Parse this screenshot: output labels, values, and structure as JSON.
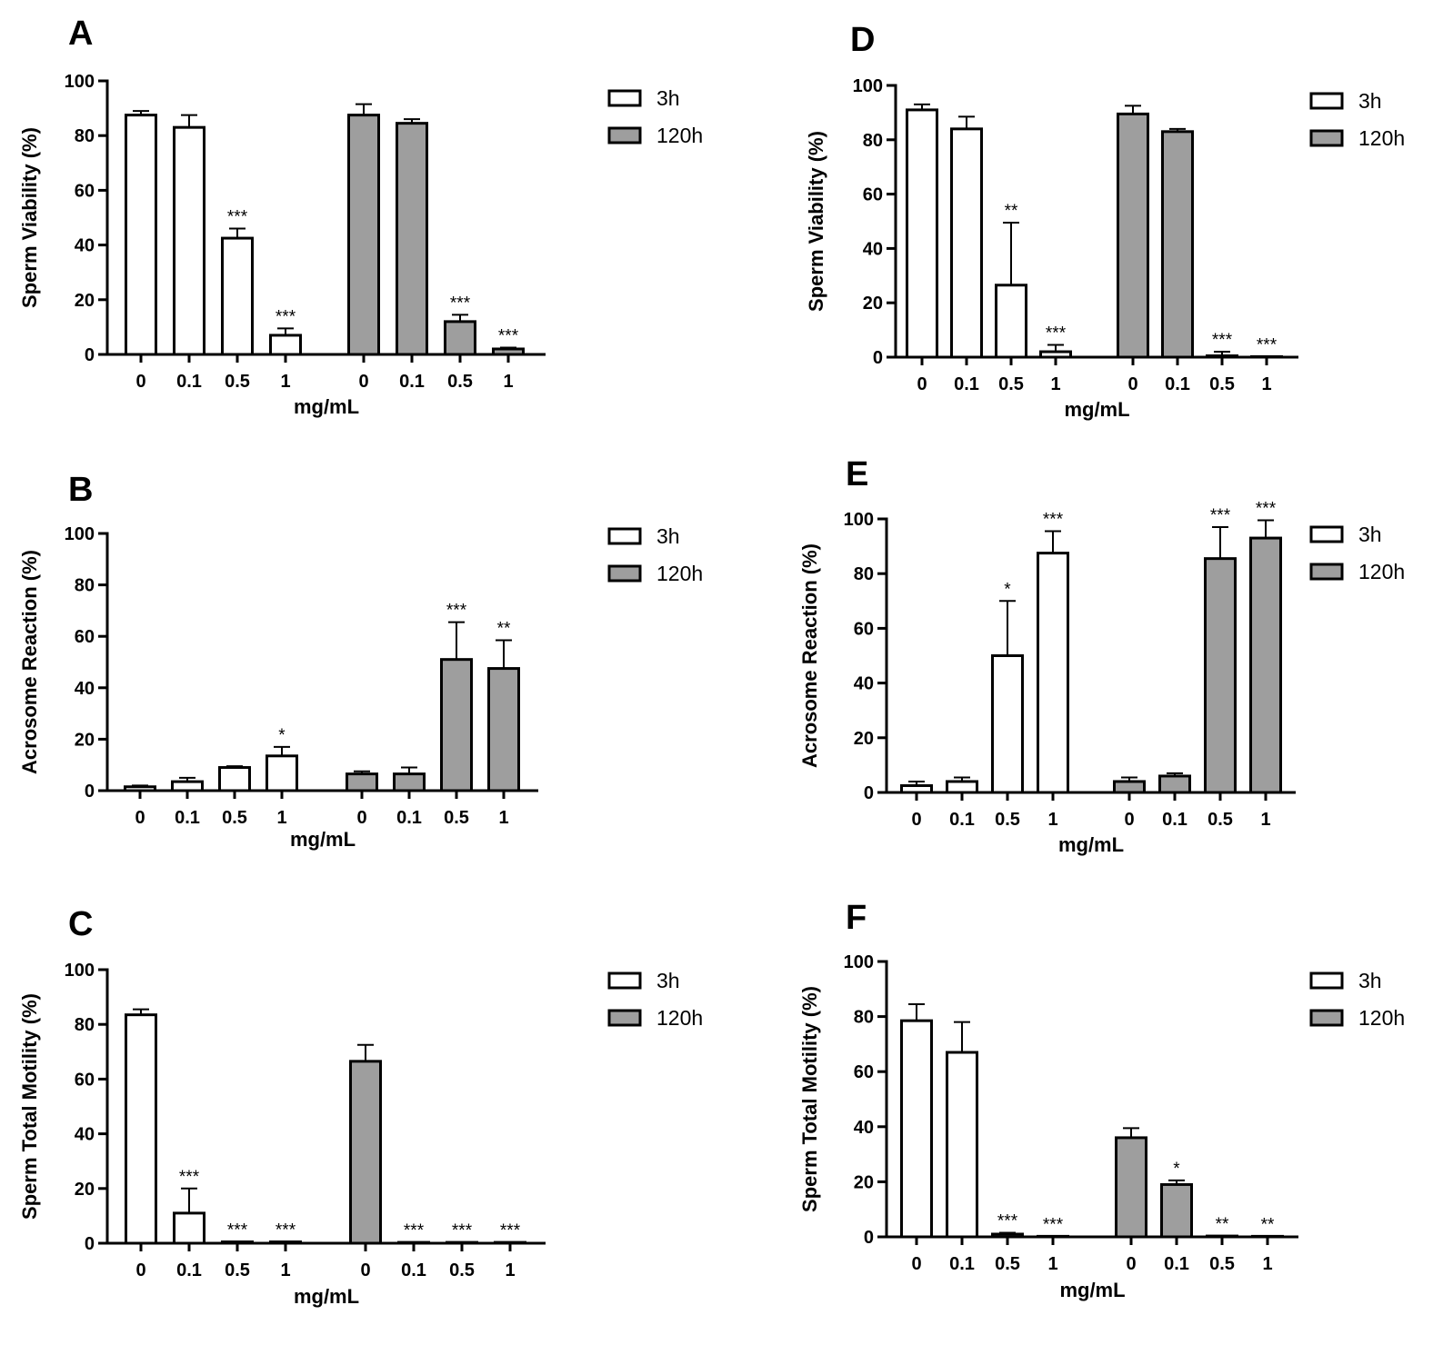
{
  "figure_colors": {
    "series_3h": "#ffffff",
    "series_120h": "#9e9e9e",
    "ink": "#000000"
  },
  "chart_data": [
    {
      "type": "bar",
      "panel": "A",
      "title": "",
      "xlabel": "mg/mL",
      "ylabel": "Sperm Viability (%)",
      "ylim": [
        0,
        100
      ],
      "yticks": [
        0,
        20,
        40,
        60,
        80,
        100
      ],
      "categories": [
        "0",
        "0.1",
        "0.5",
        "1"
      ],
      "legend": [
        "3h",
        "120h"
      ],
      "legend_position": "right",
      "series": [
        {
          "name": "3h",
          "values": [
            87.5,
            83,
            42.5,
            7
          ],
          "errors": [
            1.5,
            4.5,
            3.5,
            2.5
          ],
          "significance": [
            "",
            "",
            "***",
            "***"
          ]
        },
        {
          "name": "120h",
          "values": [
            87.5,
            84.5,
            12,
            2
          ],
          "errors": [
            4,
            1.5,
            2.5,
            0.5
          ],
          "significance": [
            "",
            "",
            "***",
            "***"
          ]
        }
      ]
    },
    {
      "type": "bar",
      "panel": "B",
      "title": "",
      "xlabel": "mg/mL",
      "ylabel": "Acrosome Reaction (%)",
      "ylim": [
        0,
        100
      ],
      "yticks": [
        0,
        20,
        40,
        60,
        80,
        100
      ],
      "categories": [
        "0",
        "0.1",
        "0.5",
        "1"
      ],
      "legend": [
        "3h",
        "120h"
      ],
      "legend_position": "right",
      "series": [
        {
          "name": "3h",
          "values": [
            1.5,
            3.5,
            9,
            13.5
          ],
          "errors": [
            0.5,
            1.5,
            0.5,
            3.5
          ],
          "significance": [
            "",
            "",
            "",
            "*"
          ]
        },
        {
          "name": "120h",
          "values": [
            6.5,
            6.5,
            51,
            47.5
          ],
          "errors": [
            1,
            2.5,
            14.5,
            11
          ],
          "significance": [
            "",
            "",
            "***",
            "**"
          ]
        }
      ]
    },
    {
      "type": "bar",
      "panel": "C",
      "title": "",
      "xlabel": "mg/mL",
      "ylabel": "Sperm Total Motility (%)",
      "ylim": [
        0,
        100
      ],
      "yticks": [
        0,
        20,
        40,
        60,
        80,
        100
      ],
      "categories": [
        "0",
        "0.1",
        "0.5",
        "1"
      ],
      "legend": [
        "3h",
        "120h"
      ],
      "legend_position": "right",
      "series": [
        {
          "name": "3h",
          "values": [
            83.5,
            11,
            0.5,
            0.5
          ],
          "errors": [
            2,
            9,
            0,
            0
          ],
          "significance": [
            "",
            "***",
            "***",
            "***"
          ]
        },
        {
          "name": "120h",
          "values": [
            66.5,
            0.3,
            0.3,
            0.3
          ],
          "errors": [
            6,
            0,
            0,
            0
          ],
          "significance": [
            "",
            "***",
            "***",
            "***"
          ]
        }
      ]
    },
    {
      "type": "bar",
      "panel": "D",
      "title": "",
      "xlabel": "mg/mL",
      "ylabel": "Sperm Viability (%)",
      "ylim": [
        0,
        100
      ],
      "yticks": [
        0,
        20,
        40,
        60,
        80,
        100
      ],
      "categories": [
        "0",
        "0.1",
        "0.5",
        "1"
      ],
      "legend": [
        "3h",
        "120h"
      ],
      "legend_position": "right",
      "series": [
        {
          "name": "3h",
          "values": [
            91,
            84,
            26.5,
            2
          ],
          "errors": [
            2,
            4.5,
            23,
            2.5
          ],
          "significance": [
            "",
            "",
            "**",
            "***"
          ]
        },
        {
          "name": "120h",
          "values": [
            89.5,
            83,
            0.5,
            0.2
          ],
          "errors": [
            3,
            1,
            1.5,
            0
          ],
          "significance": [
            "",
            "",
            "***",
            "***"
          ]
        }
      ]
    },
    {
      "type": "bar",
      "panel": "E",
      "title": "",
      "xlabel": "mg/mL",
      "ylabel": "Acrosome Reaction (%)",
      "ylim": [
        0,
        100
      ],
      "yticks": [
        0,
        20,
        40,
        60,
        80,
        100
      ],
      "categories": [
        "0",
        "0.1",
        "0.5",
        "1"
      ],
      "legend": [
        "3h",
        "120h"
      ],
      "legend_position": "right",
      "series": [
        {
          "name": "3h",
          "values": [
            2.5,
            4,
            50,
            87.5
          ],
          "errors": [
            1.5,
            1.5,
            20,
            8
          ],
          "significance": [
            "",
            "",
            "*",
            "***"
          ]
        },
        {
          "name": "120h",
          "values": [
            4,
            6,
            85.5,
            93
          ],
          "errors": [
            1.5,
            1,
            11.5,
            6.5
          ],
          "significance": [
            "",
            "",
            "***",
            "***"
          ]
        }
      ]
    },
    {
      "type": "bar",
      "panel": "F",
      "title": "",
      "xlabel": "mg/mL",
      "ylabel": "Sperm Total Motility (%)",
      "ylim": [
        0,
        100
      ],
      "yticks": [
        0,
        20,
        40,
        60,
        80,
        100
      ],
      "categories": [
        "0",
        "0.1",
        "0.5",
        "1"
      ],
      "legend": [
        "3h",
        "120h"
      ],
      "legend_position": "right",
      "series": [
        {
          "name": "3h",
          "values": [
            78.5,
            67,
            1,
            0.2
          ],
          "errors": [
            6,
            11,
            0.5,
            0
          ],
          "significance": [
            "",
            "",
            "***",
            "***"
          ]
        },
        {
          "name": "120h",
          "values": [
            36,
            19,
            0.3,
            0.2
          ],
          "errors": [
            3.5,
            1.5,
            0,
            0
          ],
          "significance": [
            "",
            "*",
            "**",
            "**"
          ]
        }
      ]
    }
  ]
}
